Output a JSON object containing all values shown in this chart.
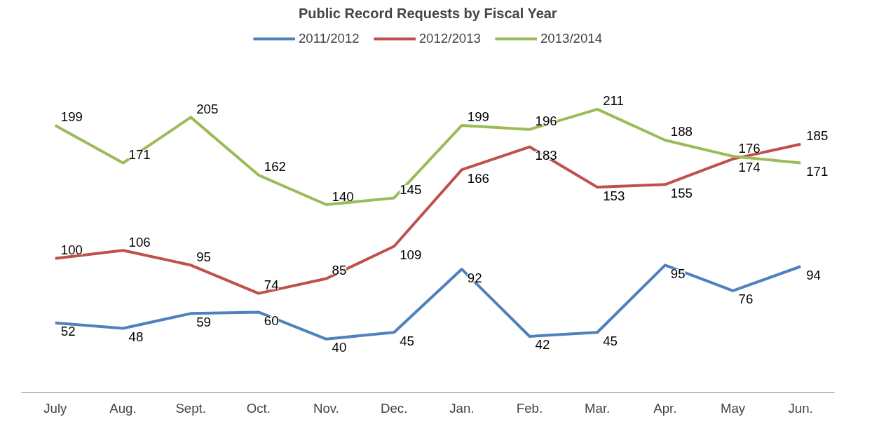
{
  "chart_data": {
    "type": "line",
    "title": "Public Record Requests by Fiscal Year",
    "categories": [
      "July",
      "Aug.",
      "Sept.",
      "Oct.",
      "Nov.",
      "Dec.",
      "Jan.",
      "Feb.",
      "Mar.",
      "Apr.",
      "May",
      "Jun."
    ],
    "series": [
      {
        "name": "2011/2012",
        "color": "#4f81bd",
        "values": [
          52,
          48,
          59,
          60,
          40,
          45,
          92,
          42,
          45,
          95,
          76,
          94
        ]
      },
      {
        "name": "2012/2013",
        "color": "#c0504d",
        "values": [
          100,
          106,
          95,
          74,
          85,
          109,
          166,
          183,
          153,
          155,
          174,
          185
        ]
      },
      {
        "name": "2013/2014",
        "color": "#9bbb59",
        "values": [
          199,
          171,
          205,
          162,
          140,
          145,
          199,
          196,
          211,
          188,
          176,
          171
        ]
      }
    ],
    "data_labels": true,
    "legend": "top",
    "grid": false,
    "marker": "none",
    "line_style": "solid"
  }
}
